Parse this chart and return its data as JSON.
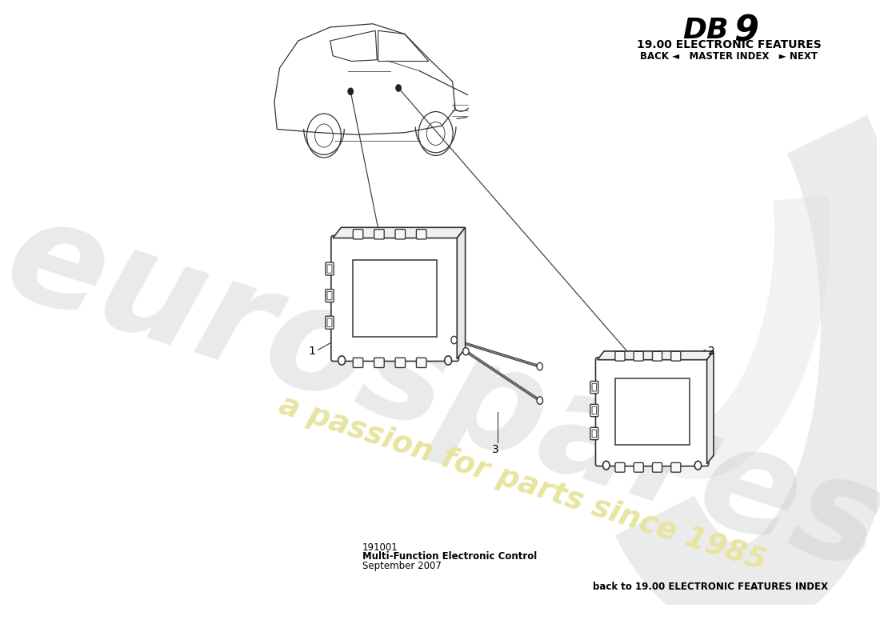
{
  "title_model": "DB 9",
  "title_section": "19.00 ELECTRONIC FEATURES",
  "title_nav": "BACK ◄   MASTER INDEX   ► NEXT",
  "part_number": "191001",
  "part_name": "Multi-Function Electronic Control",
  "part_date": "September 2007",
  "back_link": "back to 19.00 ELECTRONIC FEATURES INDEX",
  "bg_color": "#ffffff",
  "watermark_text1": "eurospares",
  "watermark_text2": "a passion for parts since 1985",
  "label1": "1",
  "label2": "2",
  "label3": "3",
  "line_color": "#333333",
  "part_color": "#333333",
  "watermark_color1": "#d0d0d0",
  "watermark_color2": "#e8e4a0"
}
